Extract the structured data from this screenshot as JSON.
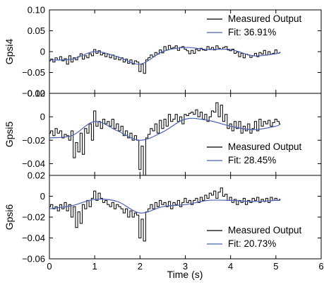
{
  "chart_data": {
    "type": "line",
    "xlabel": "Time (s)",
    "x_ticks": [
      "0",
      "1",
      "2",
      "3",
      "4",
      "5",
      "6"
    ],
    "xlim": [
      0,
      6
    ],
    "grid": false,
    "legend_placement": "right",
    "colors": {
      "measured": "#000000",
      "fit": "#4a62b8"
    },
    "panels": [
      {
        "ylabel": "Gpsi4",
        "ylim": [
          -0.1,
          0.1
        ],
        "y_ticks": [
          "0.10",
          "0.05",
          "0",
          "−0.05",
          "−0.10"
        ],
        "y_tick_values": [
          0.1,
          0.05,
          0,
          -0.05,
          -0.1
        ],
        "legend_position": "top-right",
        "series": [
          {
            "name": "Measured Output",
            "color": "#000000"
          },
          {
            "name": "Fit: 36.91%",
            "color": "#4a62b8"
          }
        ]
      },
      {
        "ylabel": "Gpsi5",
        "ylim": [
          -0.05,
          0.02
        ],
        "y_ticks": [
          "0.02",
          "0",
          "−0.02",
          "−0.04"
        ],
        "y_tick_values": [
          0.02,
          0,
          -0.02,
          -0.04
        ],
        "legend_position": "bottom-right",
        "series": [
          {
            "name": "Measured Output",
            "color": "#000000"
          },
          {
            "name": "Fit: 28.45%",
            "color": "#4a62b8"
          }
        ]
      },
      {
        "ylabel": "Gpsi6",
        "ylim": [
          -0.06,
          0.02
        ],
        "y_ticks": [
          "0.02",
          "0",
          "−0.02",
          "−0.04",
          "−0.06"
        ],
        "y_tick_values": [
          0.02,
          0,
          -0.02,
          -0.04,
          -0.06
        ],
        "legend_position": "bottom-right",
        "series": [
          {
            "name": "Measured Output",
            "color": "#000000"
          },
          {
            "name": "Fit: 20.73%",
            "color": "#4a62b8"
          }
        ]
      }
    ],
    "fit_curves": [
      {
        "x": [
          0,
          0.5,
          1,
          1.5,
          2,
          2.5,
          3,
          3.5,
          4,
          4.5,
          5,
          5.1
        ],
        "y": [
          -0.02,
          -0.018,
          0.0,
          -0.012,
          -0.03,
          0.0,
          0.01,
          0.005,
          0.005,
          -0.01,
          -0.005,
          -0.002
        ]
      },
      {
        "x": [
          0,
          0.5,
          1,
          1.5,
          2,
          2.5,
          3,
          3.5,
          4,
          4.5,
          5,
          5.1
        ],
        "y": [
          -0.018,
          -0.016,
          -0.004,
          -0.012,
          -0.02,
          -0.013,
          -0.002,
          -0.003,
          -0.008,
          -0.011,
          -0.008,
          -0.006
        ]
      },
      {
        "x": [
          0,
          0.5,
          1,
          1.5,
          2,
          2.5,
          3,
          3.5,
          4,
          4.5,
          5,
          5.1
        ],
        "y": [
          -0.012,
          -0.009,
          -0.003,
          -0.005,
          -0.016,
          -0.01,
          -0.008,
          -0.004,
          -0.004,
          -0.005,
          -0.004,
          -0.004
        ]
      }
    ],
    "measured_samples": [
      {
        "x": [
          0.0,
          0.05,
          0.1,
          0.15,
          0.2,
          0.25,
          0.3,
          0.35,
          0.4,
          0.45,
          0.5,
          0.55,
          0.6,
          0.65,
          0.7,
          0.75,
          0.8,
          0.85,
          0.9,
          0.95,
          1.0,
          1.05,
          1.1,
          1.15,
          1.2,
          1.25,
          1.3,
          1.35,
          1.4,
          1.45,
          1.5,
          1.55,
          1.6,
          1.65,
          1.7,
          1.75,
          1.8,
          1.85,
          1.9,
          1.95,
          2.0,
          2.05,
          2.1,
          2.15,
          2.2,
          2.25,
          2.3,
          2.35,
          2.4,
          2.45,
          2.5,
          2.55,
          2.6,
          2.65,
          2.7,
          2.75,
          2.8,
          2.85,
          2.9,
          2.95,
          3.0,
          3.05,
          3.1,
          3.15,
          3.2,
          3.25,
          3.3,
          3.35,
          3.4,
          3.45,
          3.5,
          3.55,
          3.6,
          3.65,
          3.7,
          3.75,
          3.8,
          3.85,
          3.9,
          3.95,
          4.0,
          4.05,
          4.1,
          4.15,
          4.2,
          4.25,
          4.3,
          4.35,
          4.4,
          4.45,
          4.5,
          4.55,
          4.6,
          4.65,
          4.7,
          4.75,
          4.8,
          4.85,
          4.9,
          4.95,
          5.0,
          5.05,
          5.1
        ],
        "y": [
          -0.022,
          -0.018,
          -0.025,
          -0.015,
          -0.02,
          -0.012,
          -0.022,
          -0.017,
          -0.03,
          -0.01,
          -0.025,
          -0.015,
          -0.02,
          -0.012,
          -0.005,
          -0.018,
          -0.01,
          -0.015,
          -0.005,
          -0.01,
          0.005,
          -0.004,
          0.002,
          -0.008,
          -0.004,
          -0.012,
          -0.006,
          -0.015,
          -0.008,
          -0.018,
          -0.012,
          -0.02,
          -0.015,
          -0.025,
          -0.018,
          -0.028,
          -0.02,
          -0.03,
          -0.022,
          -0.025,
          -0.048,
          -0.03,
          -0.052,
          -0.02,
          -0.015,
          -0.008,
          -0.012,
          -0.002,
          -0.006,
          0.004,
          -0.003,
          0.012,
          0.004,
          0.015,
          0.008,
          0.01,
          0.014,
          0.003,
          0.01,
          0.012,
          0.006,
          0.002,
          -0.005,
          0.003,
          -0.004,
          0.006,
          0.002,
          0.008,
          0.004,
          0.003,
          0.012,
          0.006,
          0.01,
          0.004,
          0.014,
          0.008,
          0.006,
          0.01,
          0.012,
          0.004,
          0.002,
          0.006,
          -0.004,
          -0.001,
          -0.012,
          -0.004,
          -0.015,
          -0.006,
          -0.008,
          -0.014,
          -0.01,
          -0.004,
          -0.012,
          -0.002,
          -0.006,
          0.003,
          -0.008,
          0.0,
          -0.006,
          -0.004,
          0.004,
          -0.004,
          -0.002
        ]
      },
      {
        "x": [
          0.0,
          0.05,
          0.1,
          0.15,
          0.2,
          0.25,
          0.3,
          0.35,
          0.4,
          0.45,
          0.5,
          0.55,
          0.6,
          0.65,
          0.7,
          0.75,
          0.8,
          0.85,
          0.9,
          0.95,
          1.0,
          1.05,
          1.1,
          1.15,
          1.2,
          1.25,
          1.3,
          1.35,
          1.4,
          1.45,
          1.5,
          1.55,
          1.6,
          1.65,
          1.7,
          1.75,
          1.8,
          1.85,
          1.9,
          1.95,
          2.0,
          2.05,
          2.1,
          2.15,
          2.2,
          2.25,
          2.3,
          2.35,
          2.4,
          2.45,
          2.5,
          2.55,
          2.6,
          2.65,
          2.7,
          2.75,
          2.8,
          2.85,
          2.9,
          2.95,
          3.0,
          3.05,
          3.1,
          3.15,
          3.2,
          3.25,
          3.3,
          3.35,
          3.4,
          3.45,
          3.5,
          3.55,
          3.6,
          3.65,
          3.7,
          3.75,
          3.8,
          3.85,
          3.9,
          3.95,
          4.0,
          4.05,
          4.1,
          4.15,
          4.2,
          4.25,
          4.3,
          4.35,
          4.4,
          4.45,
          4.5,
          4.55,
          4.6,
          4.65,
          4.7,
          4.75,
          4.8,
          4.85,
          4.9,
          4.95,
          5.0,
          5.05,
          5.1
        ],
        "y": [
          -0.014,
          -0.012,
          -0.016,
          -0.01,
          -0.014,
          -0.012,
          -0.018,
          -0.015,
          -0.016,
          -0.02,
          -0.012,
          -0.035,
          -0.022,
          -0.03,
          -0.014,
          -0.032,
          -0.01,
          -0.014,
          -0.006,
          -0.02,
          0.005,
          -0.008,
          -0.004,
          -0.01,
          -0.002,
          -0.006,
          -0.004,
          -0.008,
          -0.002,
          -0.01,
          -0.006,
          -0.012,
          -0.008,
          -0.016,
          -0.012,
          -0.018,
          -0.014,
          -0.02,
          -0.016,
          -0.02,
          -0.045,
          -0.025,
          -0.05,
          -0.018,
          -0.015,
          -0.01,
          -0.012,
          -0.006,
          -0.014,
          -0.003,
          -0.01,
          -0.002,
          -0.008,
          0.002,
          -0.004,
          -0.002,
          0.002,
          -0.004,
          0.0,
          -0.006,
          0.002,
          0.001,
          0.003,
          0.004,
          0.002,
          0.006,
          0.0,
          0.004,
          -0.002,
          0.002,
          -0.004,
          0.0,
          0.005,
          0.004,
          0.012,
          0.0,
          0.01,
          -0.004,
          0.002,
          -0.01,
          -0.006,
          -0.012,
          -0.004,
          -0.01,
          -0.004,
          -0.014,
          -0.008,
          -0.012,
          -0.006,
          -0.014,
          -0.01,
          -0.004,
          -0.012,
          -0.002,
          -0.008,
          -0.004,
          -0.006,
          -0.003,
          -0.008,
          -0.005,
          -0.002,
          -0.004,
          -0.006
        ]
      },
      {
        "x": [
          0.0,
          0.05,
          0.1,
          0.15,
          0.2,
          0.25,
          0.3,
          0.35,
          0.4,
          0.45,
          0.5,
          0.55,
          0.6,
          0.65,
          0.7,
          0.75,
          0.8,
          0.85,
          0.9,
          0.95,
          1.0,
          1.05,
          1.1,
          1.15,
          1.2,
          1.25,
          1.3,
          1.35,
          1.4,
          1.45,
          1.5,
          1.55,
          1.6,
          1.65,
          1.7,
          1.75,
          1.8,
          1.85,
          1.9,
          1.95,
          2.0,
          2.05,
          2.1,
          2.15,
          2.2,
          2.25,
          2.3,
          2.35,
          2.4,
          2.45,
          2.5,
          2.55,
          2.6,
          2.65,
          2.7,
          2.75,
          2.8,
          2.85,
          2.9,
          2.95,
          3.0,
          3.05,
          3.1,
          3.15,
          3.2,
          3.25,
          3.3,
          3.35,
          3.4,
          3.45,
          3.5,
          3.55,
          3.6,
          3.65,
          3.7,
          3.75,
          3.8,
          3.85,
          3.9,
          3.95,
          4.0,
          4.05,
          4.1,
          4.15,
          4.2,
          4.25,
          4.3,
          4.35,
          4.4,
          4.45,
          4.5,
          4.55,
          4.6,
          4.65,
          4.7,
          4.75,
          4.8,
          4.85,
          4.9,
          4.95,
          5.0,
          5.05,
          5.1
        ],
        "y": [
          -0.01,
          -0.008,
          -0.012,
          -0.01,
          -0.014,
          -0.008,
          -0.012,
          -0.006,
          -0.014,
          -0.008,
          -0.02,
          -0.01,
          -0.03,
          -0.015,
          -0.026,
          -0.008,
          -0.012,
          -0.004,
          -0.01,
          -0.002,
          0.005,
          -0.004,
          0.003,
          -0.002,
          -0.006,
          -0.004,
          -0.008,
          -0.01,
          -0.006,
          -0.012,
          -0.008,
          -0.01,
          -0.012,
          -0.016,
          -0.012,
          -0.02,
          -0.014,
          -0.02,
          -0.016,
          -0.018,
          -0.04,
          -0.022,
          -0.043,
          -0.015,
          -0.012,
          -0.008,
          -0.012,
          -0.006,
          -0.01,
          -0.004,
          -0.008,
          -0.006,
          -0.01,
          -0.005,
          -0.012,
          -0.006,
          -0.008,
          -0.004,
          -0.01,
          -0.006,
          -0.002,
          -0.006,
          -0.004,
          -0.008,
          -0.004,
          -0.002,
          -0.006,
          -0.001,
          -0.004,
          0.001,
          -0.002,
          0.003,
          0.001,
          0.005,
          -0.002,
          0.004,
          0.008,
          0.0,
          0.002,
          -0.004,
          -0.001,
          -0.006,
          -0.003,
          -0.008,
          -0.004,
          -0.006,
          -0.002,
          -0.008,
          -0.004,
          -0.006,
          -0.002,
          -0.004,
          -0.001,
          -0.006,
          -0.003,
          -0.005,
          -0.002,
          -0.006,
          -0.001,
          -0.004,
          -0.002,
          -0.004,
          -0.003
        ]
      }
    ],
    "watermark": ""
  }
}
